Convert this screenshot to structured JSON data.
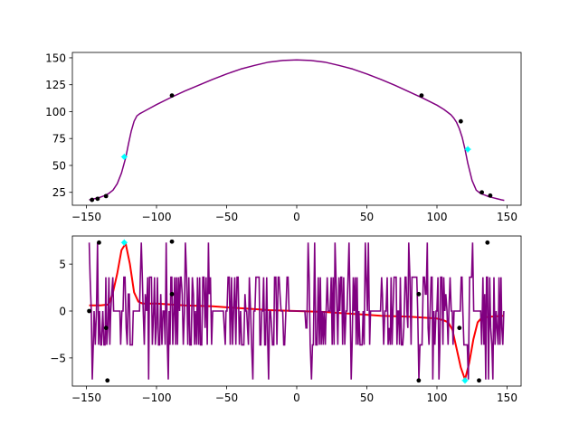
{
  "chart_data": [
    {
      "type": "line",
      "title": "",
      "xlabel": "",
      "ylabel": "",
      "xlim": [
        -160,
        160
      ],
      "ylim": [
        13,
        155
      ],
      "xticks": [
        -150,
        -100,
        -50,
        0,
        50,
        100,
        150
      ],
      "xtick_labels": [
        "−150",
        "−100",
        "−50",
        "0",
        "50",
        "100",
        "150"
      ],
      "yticks": [
        25,
        50,
        75,
        100,
        125,
        150
      ],
      "ytick_labels": [
        "25",
        "50",
        "75",
        "100",
        "125",
        "150"
      ],
      "series": [
        {
          "name": "profile",
          "color": "#800080",
          "x": [
            -148,
            -146,
            -143,
            -140,
            -137,
            -134,
            -131,
            -128,
            -125,
            -122,
            -120,
            -118,
            -116,
            -114,
            -112,
            -110,
            -105,
            -100,
            -90,
            -80,
            -70,
            -60,
            -50,
            -40,
            -30,
            -20,
            -10,
            0,
            10,
            20,
            30,
            40,
            50,
            60,
            70,
            80,
            90,
            100,
            105,
            108,
            110,
            112,
            114,
            116,
            118,
            120,
            122,
            125,
            128,
            131,
            134,
            137,
            140,
            143,
            146,
            148
          ],
          "y": [
            18,
            18.5,
            19.5,
            20.5,
            22,
            24,
            27,
            33,
            43,
            57,
            70,
            82,
            91,
            96,
            98,
            99.5,
            103,
            106.5,
            113,
            119,
            124.5,
            130,
            135,
            139.5,
            143,
            146,
            147.5,
            148,
            147.5,
            146,
            143,
            139.5,
            135,
            130,
            124.5,
            118.5,
            112.5,
            106,
            102,
            99,
            97,
            94,
            90,
            84,
            76,
            65,
            52,
            36,
            27,
            24,
            22.5,
            21,
            20,
            19,
            18,
            17.5
          ]
        }
      ],
      "markers": {
        "black": [
          [
            -146,
            18
          ],
          [
            -142,
            19
          ],
          [
            -136,
            21.5
          ],
          [
            -89,
            115
          ],
          [
            89,
            115
          ],
          [
            117,
            91
          ],
          [
            132,
            25
          ],
          [
            138,
            22
          ]
        ],
        "cyan": [
          [
            -123,
            58
          ],
          [
            122,
            65
          ]
        ]
      }
    },
    {
      "type": "line",
      "title": "",
      "xlabel": "",
      "ylabel": "",
      "xlim": [
        -160,
        160
      ],
      "ylim": [
        -8,
        8
      ],
      "xticks": [
        -150,
        -100,
        -50,
        0,
        50,
        100,
        150
      ],
      "xtick_labels": [
        "−150",
        "−100",
        "−50",
        "0",
        "50",
        "100",
        "150"
      ],
      "yticks": [
        -5,
        0,
        5
      ],
      "ytick_labels": [
        "−5",
        "0",
        "5"
      ],
      "series": [
        {
          "name": "derivative-smooth",
          "color": "#ff0000",
          "x": [
            -148,
            -140,
            -134,
            -131,
            -128,
            -125,
            -122,
            -119,
            -116,
            -113,
            -110,
            -105,
            -100,
            -90,
            -80,
            -70,
            -60,
            -50,
            -40,
            -30,
            -20,
            -10,
            0,
            10,
            20,
            30,
            40,
            50,
            60,
            70,
            80,
            90,
            100,
            105,
            108,
            111,
            114,
            117,
            120,
            123,
            126,
            129,
            132,
            138,
            148
          ],
          "y": [
            0.6,
            0.6,
            0.7,
            2,
            4,
            6.5,
            7.2,
            5,
            2,
            1,
            0.8,
            0.8,
            0.8,
            0.7,
            0.6,
            0.55,
            0.5,
            0.4,
            0.3,
            0.2,
            0.1,
            0.05,
            0,
            -0.05,
            -0.1,
            -0.2,
            -0.3,
            -0.4,
            -0.5,
            -0.55,
            -0.6,
            -0.7,
            -0.8,
            -1,
            -1.2,
            -2,
            -4,
            -6,
            -7.3,
            -5.5,
            -3,
            -1.2,
            -0.7,
            -0.6,
            -0.5
          ]
        },
        {
          "name": "derivative-noisy",
          "color": "#800080",
          "amplitude_levels": [
            7.3,
            3.6,
            1.8,
            -1.8,
            -3.6,
            -7.3
          ],
          "x_extent": [
            -148,
            148
          ]
        }
      ],
      "markers": {
        "black": [
          [
            -148,
            0
          ],
          [
            -141,
            7.3
          ],
          [
            -136,
            -1.8
          ],
          [
            -135,
            -7.4
          ],
          [
            -89,
            7.4
          ],
          [
            -89,
            1.8
          ],
          [
            87,
            1.8
          ],
          [
            87,
            -7.4
          ],
          [
            116,
            -1.8
          ],
          [
            130,
            -7.4
          ],
          [
            136,
            7.3
          ]
        ],
        "cyan": [
          [
            -123,
            7.3
          ],
          [
            120,
            -7.4
          ]
        ]
      }
    }
  ]
}
